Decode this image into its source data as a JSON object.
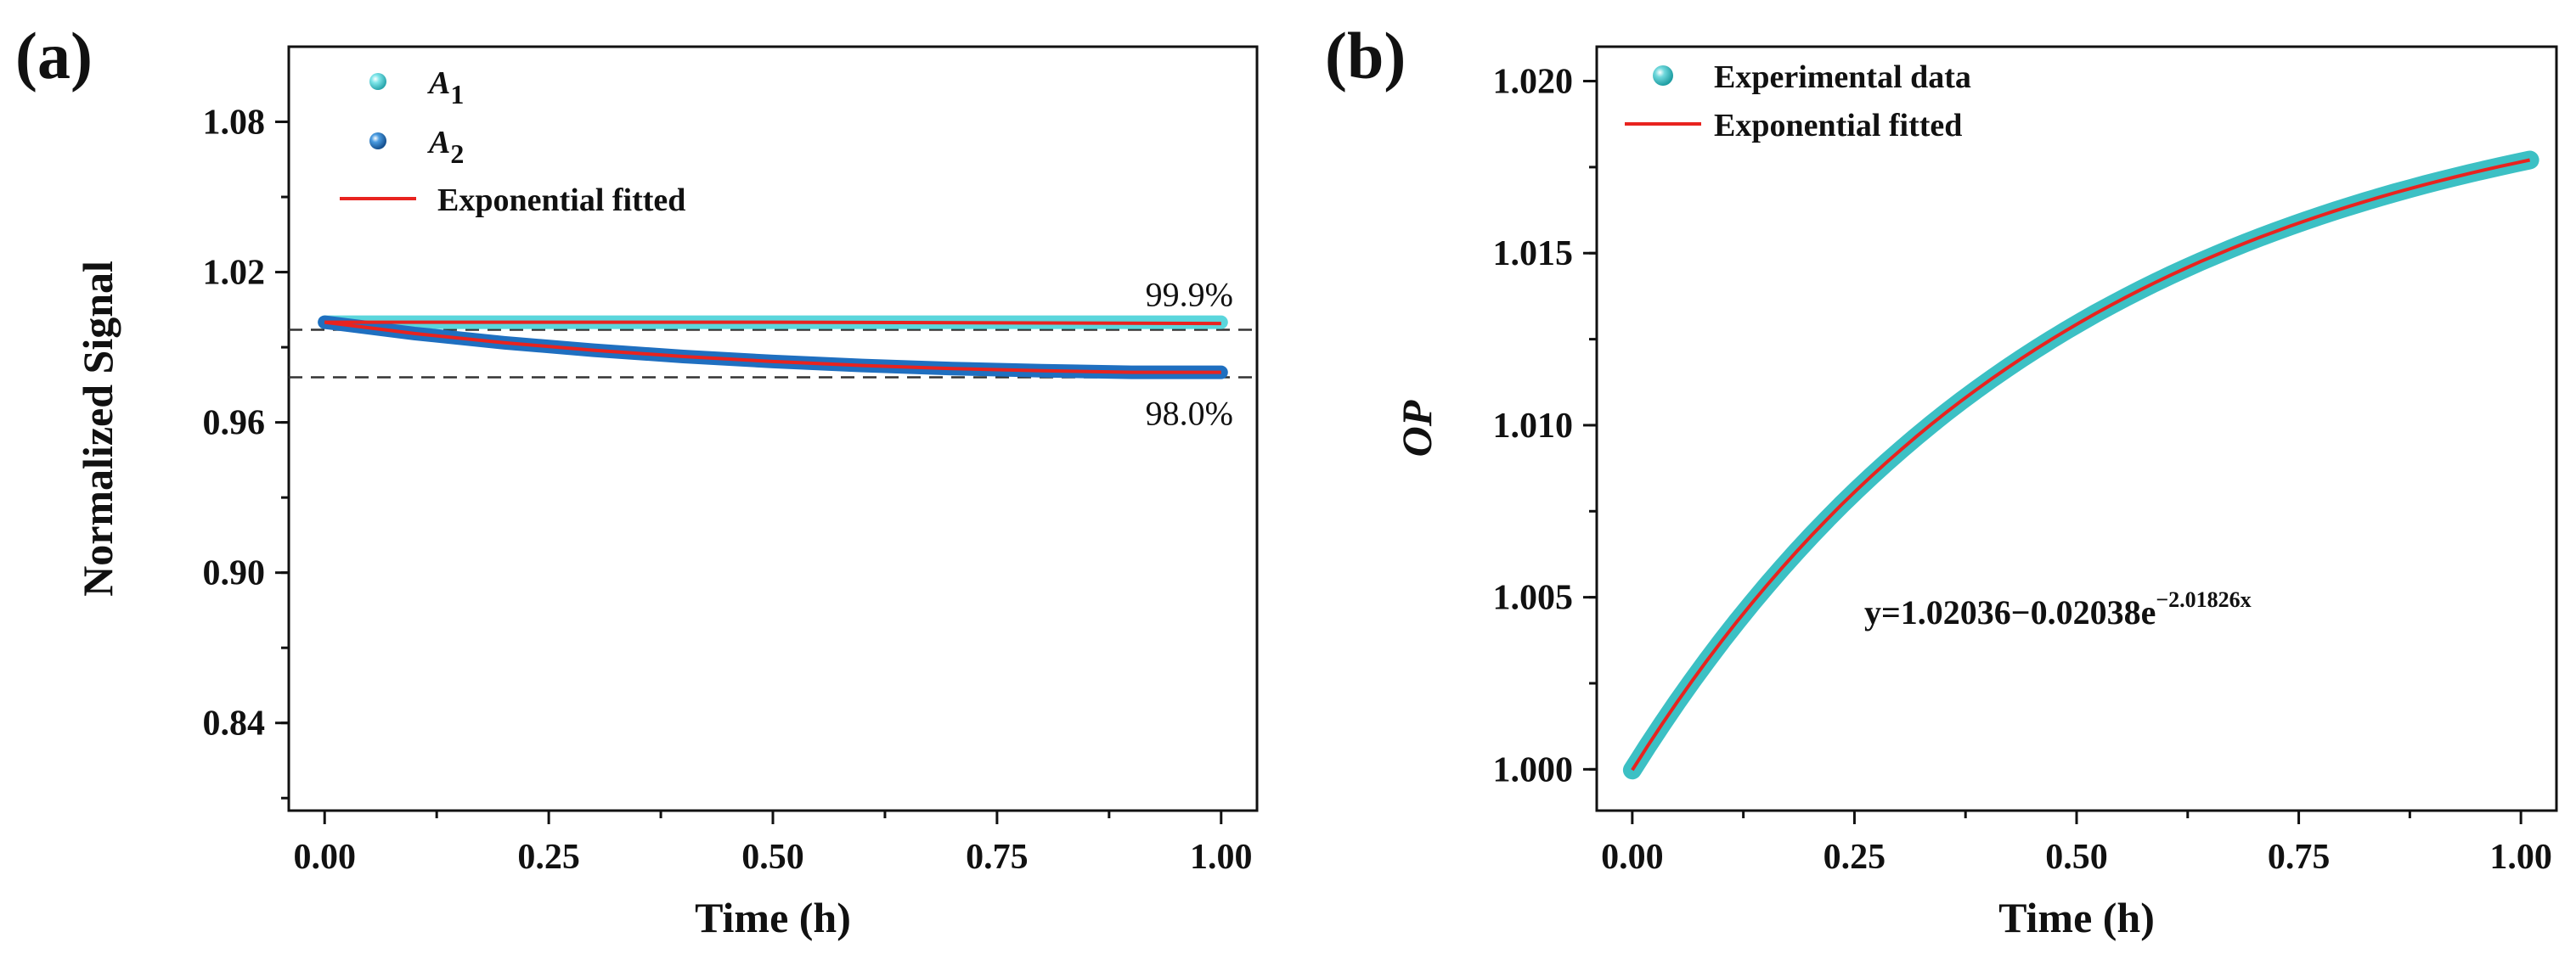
{
  "chart_data": [
    {
      "panel": "(a)",
      "type": "line",
      "xlabel": "Time (h)",
      "ylabel": "Normalized Signal",
      "xlim": [
        -0.04,
        1.04
      ],
      "ylim": [
        0.805,
        1.11
      ],
      "xticks": [
        0.0,
        0.25,
        0.5,
        0.75,
        1.0
      ],
      "xtick_labels": [
        "0.00",
        "0.25",
        "0.50",
        "0.75",
        "1.00"
      ],
      "yticks": [
        0.84,
        0.9,
        0.96,
        1.02,
        1.08
      ],
      "ytick_labels": [
        "0.84",
        "0.90",
        "0.96",
        "1.02",
        "1.08"
      ],
      "legend": {
        "position": "top-left",
        "entries": [
          "A1",
          "A2",
          "Exponential fitted"
        ]
      },
      "series": [
        {
          "name": "A1",
          "x": [
            0.0,
            0.25,
            0.5,
            0.75,
            1.0
          ],
          "y": [
            1.0,
            1.0,
            1.0,
            1.0,
            1.0
          ],
          "color": "#5bd6dc"
        },
        {
          "name": "A2",
          "x": [
            0.0,
            0.1,
            0.2,
            0.3,
            0.4,
            0.5,
            0.6,
            0.7,
            0.8,
            0.9,
            1.0
          ],
          "y": [
            1.0,
            0.9955,
            0.9918,
            0.9888,
            0.9863,
            0.9843,
            0.9827,
            0.9815,
            0.9806,
            0.98,
            0.98
          ],
          "color": "#1f6fc0"
        },
        {
          "name": "Exponential fitted (A1)",
          "x": [
            0.0,
            0.5,
            1.0
          ],
          "y": [
            1.0,
            1.0,
            0.9995
          ],
          "color": "#e8231f"
        },
        {
          "name": "Exponential fitted (A2)",
          "x": [
            0.0,
            0.1,
            0.2,
            0.3,
            0.4,
            0.5,
            0.6,
            0.7,
            0.8,
            0.9,
            1.0
          ],
          "y": [
            1.0,
            0.9955,
            0.9918,
            0.9888,
            0.9863,
            0.9843,
            0.9827,
            0.9815,
            0.9806,
            0.98,
            0.98
          ],
          "color": "#e8231f"
        }
      ],
      "reference_lines": [
        {
          "y": 0.997,
          "label": "99.9%",
          "style": "dashed"
        },
        {
          "y": 0.978,
          "label": "98.0%",
          "style": "dashed"
        }
      ]
    },
    {
      "panel": "(b)",
      "type": "line",
      "xlabel": "Time (h)",
      "ylabel": "OP",
      "xlim": [
        -0.04,
        1.04
      ],
      "ylim": [
        0.9988,
        1.021
      ],
      "xticks": [
        0.0,
        0.25,
        0.5,
        0.75,
        1.0
      ],
      "xtick_labels": [
        "0.00",
        "0.25",
        "0.50",
        "0.75",
        "1.00"
      ],
      "yticks": [
        1.0,
        1.005,
        1.01,
        1.015,
        1.02
      ],
      "ytick_labels": [
        "1.000",
        "1.005",
        "1.010",
        "1.015",
        "1.020"
      ],
      "legend": {
        "position": "top-left",
        "entries": [
          "Experimental data",
          "Exponential fitted"
        ]
      },
      "fit": {
        "a": 1.02036,
        "b": 0.02038,
        "k": 2.01826
      },
      "equation": {
        "base": "y=1.02036−0.02038e",
        "exponent": "−2.01826x"
      },
      "series": [
        {
          "name": "Experimental data",
          "x": [
            0.0,
            0.1,
            0.2,
            0.3,
            0.4,
            0.5,
            0.6,
            0.7,
            0.8,
            0.9,
            1.0
          ],
          "y": [
            1.0,
            1.0037,
            1.0068,
            1.0093,
            1.0113,
            1.013,
            1.0144,
            1.0156,
            1.0165,
            1.0173,
            1.0178
          ],
          "color": "#3cc0c4"
        },
        {
          "name": "Exponential fitted",
          "x": [
            0.0,
            0.1,
            0.2,
            0.3,
            0.4,
            0.5,
            0.6,
            0.7,
            0.8,
            0.9,
            1.0
          ],
          "y": [
            0.99998,
            1.0037,
            1.0068,
            1.0093,
            1.0113,
            1.013,
            1.0144,
            1.0155,
            1.0165,
            1.0172,
            1.0178
          ],
          "color": "#e8231f"
        }
      ]
    }
  ]
}
